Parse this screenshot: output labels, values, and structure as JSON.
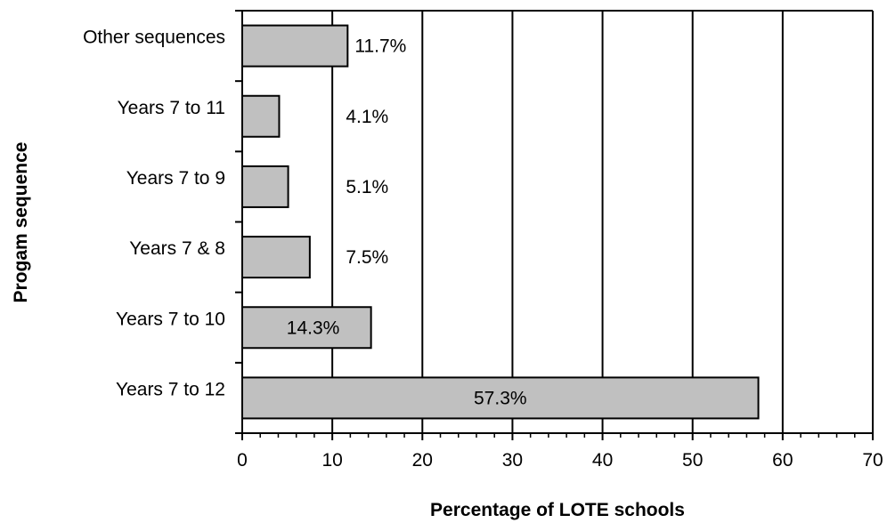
{
  "chart_data": {
    "type": "bar",
    "orientation": "horizontal",
    "categories": [
      "Other sequences",
      "Years 7 to 11",
      "Years 7 to 9",
      "Years 7 & 8",
      "Years 7 to 10",
      "Years 7 to 12"
    ],
    "values": [
      11.7,
      4.1,
      5.1,
      7.5,
      14.3,
      57.3
    ],
    "data_labels": [
      "11.7%",
      "4.1%",
      "5.1%",
      "7.5%",
      "14.3%",
      "57.3%"
    ],
    "xlabel": "Percentage of LOTE schools",
    "ylabel": "Progam sequence",
    "xlim": [
      0,
      70
    ],
    "x_ticks": [
      0,
      10,
      20,
      30,
      40,
      50,
      60,
      70
    ],
    "x_tick_labels": [
      "0",
      "10",
      "20",
      "30",
      "40",
      "50",
      "60",
      "70"
    ],
    "grid": "vertical major gridlines",
    "legend": "none",
    "colors": {
      "bar_fill": "#c0c0c0",
      "bar_stroke": "#000000",
      "grid": "#000000",
      "background": "#ffffff"
    }
  }
}
